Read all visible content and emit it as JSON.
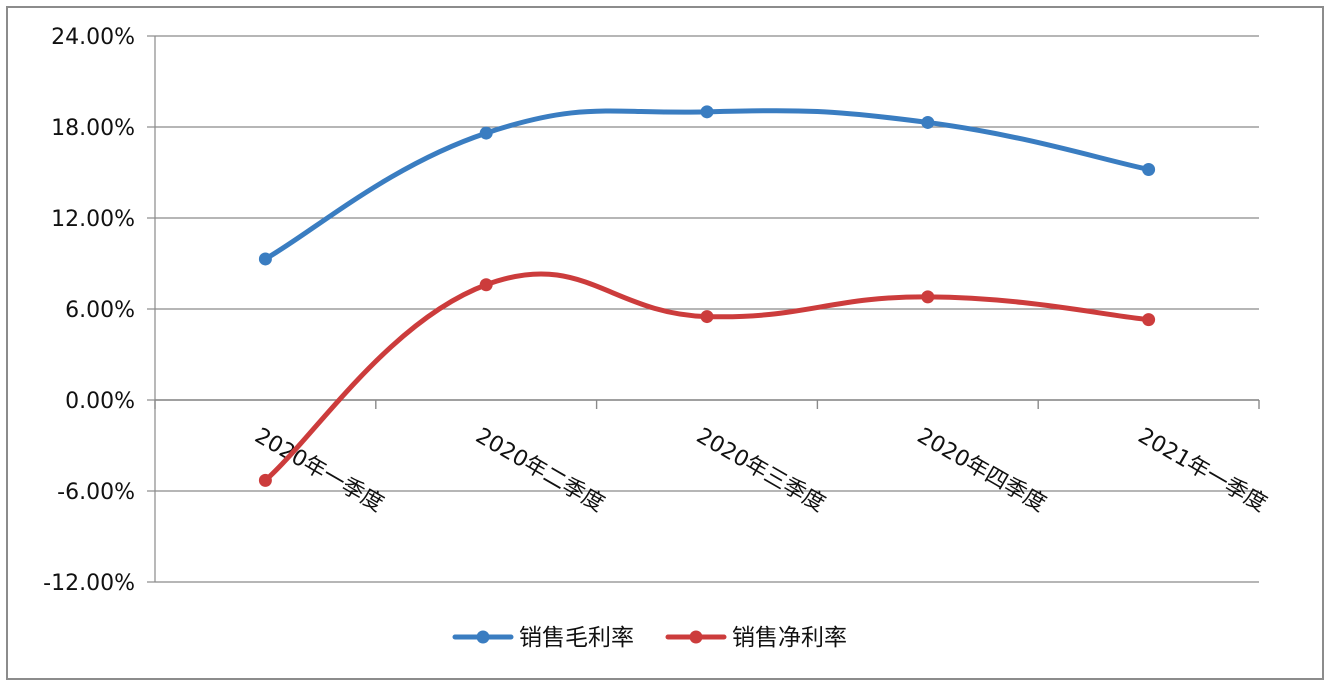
{
  "chart_data": {
    "type": "line",
    "title": "",
    "xlabel": "",
    "ylabel": "",
    "categories": [
      "2020年一季度",
      "2020年二季度",
      "2020年三季度",
      "2020年四季度",
      "2021年一季度"
    ],
    "y_ticks": [
      "-12.00%",
      "-6.00%",
      "0.00%",
      "6.00%",
      "12.00%",
      "18.00%",
      "24.00%"
    ],
    "ylim": [
      -12,
      24
    ],
    "y_unit": "%",
    "grid": true,
    "smooth": true,
    "legend_position": "bottom",
    "series": [
      {
        "name": "销售毛利率",
        "color": "#3a7dc1",
        "values": [
          9.3,
          17.6,
          19.0,
          18.3,
          15.2
        ]
      },
      {
        "name": "销售净利率",
        "color": "#cc3c3c",
        "values": [
          -5.3,
          7.6,
          5.5,
          6.8,
          5.3
        ]
      }
    ]
  }
}
